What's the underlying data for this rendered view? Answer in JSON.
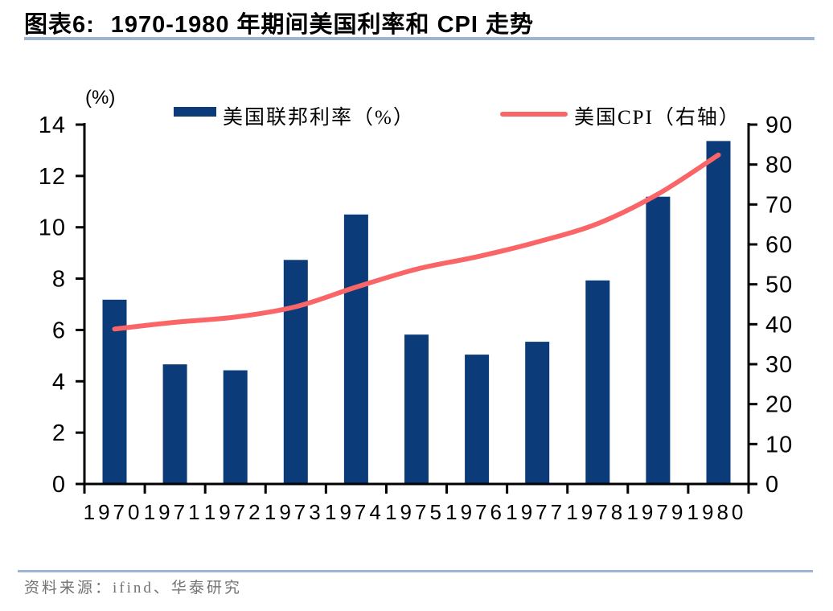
{
  "title": {
    "prefix": "图表6:",
    "text": "1970-1980 年期间美国利率和 CPI 走势"
  },
  "unit_label": "(%)",
  "legend": [
    {
      "label": "美国联邦利率（%）",
      "type": "bar",
      "color": "#0C3B7A"
    },
    {
      "label": "美国CPI（右轴）",
      "type": "line",
      "color": "#FA6668"
    }
  ],
  "footer": {
    "source": "资料来源：ifind、华泰研究"
  },
  "colors": {
    "bar": "#0C3B7A",
    "line": "#FA6668",
    "axis": "#000000",
    "rule": "#9FB3D4",
    "source_text": "#737373"
  },
  "chart_data": {
    "type": "bar",
    "title": "1970-1980 年期间美国利率和 CPI 走势",
    "categories": [
      "1970",
      "1971",
      "1972",
      "1973",
      "1974",
      "1975",
      "1976",
      "1977",
      "1978",
      "1979",
      "1980"
    ],
    "series": [
      {
        "name": "美国联邦利率（%）",
        "type": "bar",
        "axis": "left",
        "color": "#0C3B7A",
        "values": [
          7.18,
          4.66,
          4.43,
          8.73,
          10.5,
          5.82,
          5.04,
          5.54,
          7.93,
          11.19,
          13.36
        ]
      },
      {
        "name": "美国CPI（右轴）",
        "type": "line",
        "axis": "right",
        "color": "#FA6668",
        "values": [
          38.8,
          40.5,
          41.8,
          44.4,
          49.3,
          53.8,
          56.9,
          60.6,
          65.2,
          72.6,
          82.4
        ]
      }
    ],
    "left_axis": {
      "label": "(%)",
      "min": 0,
      "max": 14,
      "step": 2,
      "ticks": [
        0,
        2,
        4,
        6,
        8,
        10,
        12,
        14
      ]
    },
    "right_axis": {
      "label": "",
      "min": 0,
      "max": 90,
      "step": 10,
      "ticks": [
        0,
        10,
        20,
        30,
        40,
        50,
        60,
        70,
        80,
        90
      ]
    },
    "grid": false,
    "legend_position": "top"
  }
}
